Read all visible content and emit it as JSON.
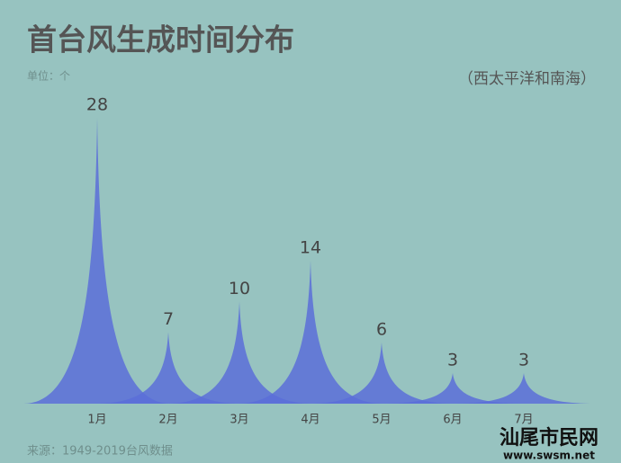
{
  "chart_data": {
    "type": "spike",
    "title": "首台风生成时间分布",
    "unit": "单位：个",
    "subtitle": "（西太平洋和南海）",
    "source": "来源：1949-2019台风数据",
    "categories": [
      "1月",
      "2月",
      "3月",
      "4月",
      "5月",
      "6月",
      "7月"
    ],
    "values": [
      28,
      7,
      10,
      14,
      6,
      3,
      3
    ],
    "color": "#5b6fd8"
  },
  "watermark": {
    "name": "汕尾市民网",
    "url": "www.swsm.net"
  }
}
